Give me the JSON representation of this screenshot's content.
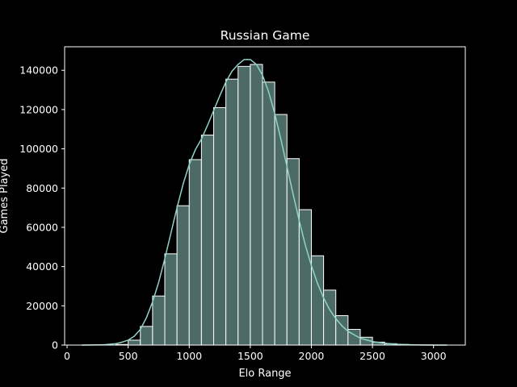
{
  "chart_data": {
    "type": "bar",
    "title": "Russian Game",
    "xlabel": "Elo Range",
    "ylabel": "Games Played",
    "xlim": [
      -20,
      3260
    ],
    "ylim": [
      0,
      152000
    ],
    "xticks": [
      0,
      500,
      1000,
      1500,
      2000,
      2500,
      3000
    ],
    "yticks": [
      0,
      20000,
      40000,
      60000,
      80000,
      100000,
      120000,
      140000
    ],
    "bin_edges": [
      100,
      200,
      300,
      400,
      500,
      600,
      700,
      800,
      900,
      1000,
      1100,
      1200,
      1300,
      1400,
      1500,
      1600,
      1700,
      1800,
      1900,
      2000,
      2100,
      2200,
      2300,
      2400,
      2500,
      2600,
      2700,
      2800,
      2900,
      3000,
      3100
    ],
    "values": [
      0,
      0,
      0,
      300,
      2500,
      9500,
      25000,
      46500,
      71000,
      94500,
      107000,
      121000,
      135500,
      142000,
      143000,
      134000,
      117500,
      95000,
      69000,
      45500,
      28000,
      15000,
      8000,
      4000,
      1500,
      700,
      300,
      100,
      50,
      20
    ],
    "kde": {
      "x": [
        120,
        200,
        300,
        400,
        450,
        500,
        550,
        600,
        650,
        700,
        750,
        800,
        850,
        900,
        950,
        1000,
        1050,
        1100,
        1150,
        1200,
        1250,
        1300,
        1350,
        1400,
        1450,
        1500,
        1550,
        1600,
        1650,
        1700,
        1750,
        1800,
        1850,
        1900,
        1950,
        2000,
        2050,
        2100,
        2150,
        2200,
        2250,
        2300,
        2400,
        2500,
        2600,
        2700,
        2800,
        2900,
        3000,
        3110
      ],
      "y": [
        0,
        50,
        150,
        700,
        1500,
        2500,
        4500,
        8000,
        14000,
        22000,
        32000,
        44000,
        57000,
        70000,
        82000,
        92000,
        99500,
        105000,
        112000,
        119500,
        127000,
        134000,
        139500,
        143000,
        145500,
        145500,
        143000,
        137500,
        129000,
        118000,
        105000,
        91000,
        77000,
        63500,
        51000,
        40500,
        31500,
        24000,
        18000,
        13500,
        9800,
        7000,
        3500,
        1800,
        900,
        400,
        150,
        50,
        20,
        0
      ]
    },
    "colors": {
      "bar_fill": "#4d6b66",
      "bar_edge": "#ffffff",
      "kde_line": "#8dd3c7",
      "axes": "#ffffff",
      "background": "#000000"
    },
    "grid": false,
    "legend": "none"
  }
}
